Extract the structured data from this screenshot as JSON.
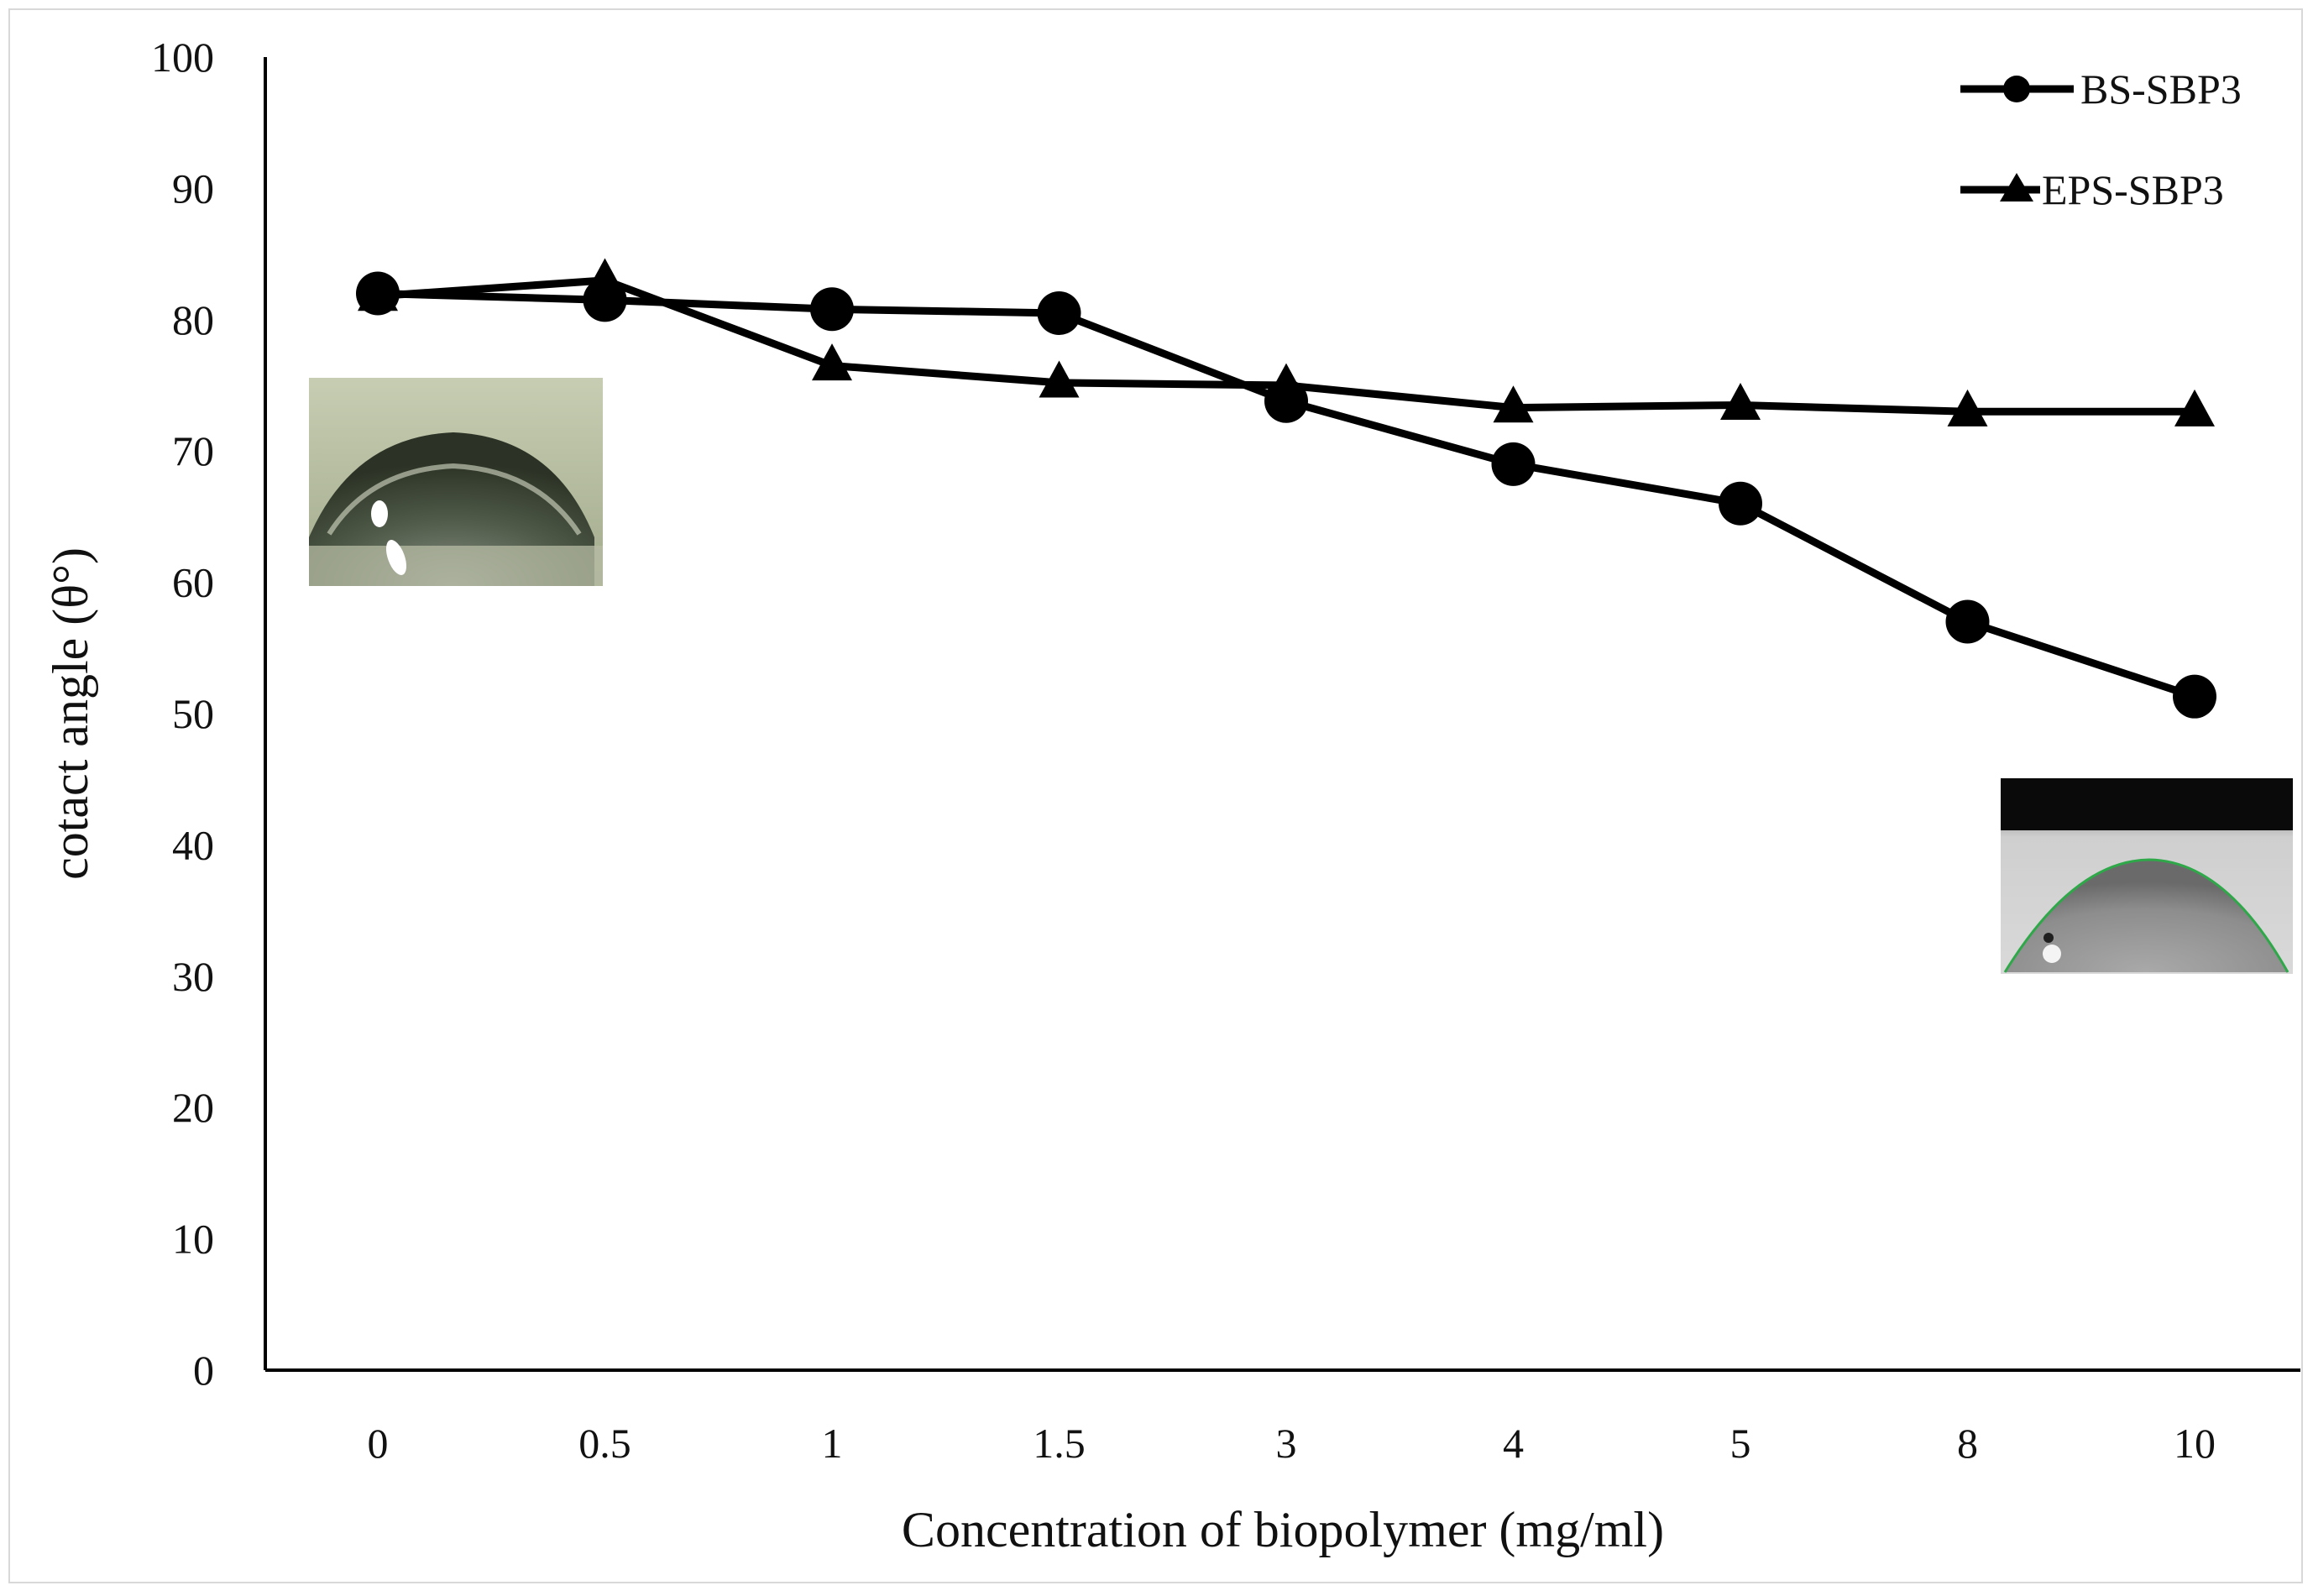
{
  "chart_data": {
    "type": "line",
    "title": "",
    "xlabel": "Concentration of biopolymer (mg/ml)",
    "ylabel": "cotact angle  (θ°)",
    "ylim": [
      0,
      100
    ],
    "y_ticks": [
      0,
      10,
      20,
      30,
      40,
      50,
      60,
      70,
      80,
      90,
      100
    ],
    "categories": [
      "0",
      "0.5",
      "1",
      "1.5",
      "3",
      "4",
      "5",
      "8",
      "10"
    ],
    "grid": false,
    "legend_position": "top-right",
    "series": [
      {
        "name": "BS-SBP3",
        "marker": "circle",
        "color": "#000000",
        "values": [
          82,
          81.5,
          80.8,
          80.5,
          73.8,
          69,
          66,
          57,
          51.3
        ]
      },
      {
        "name": "EPS-SBP3",
        "marker": "triangle",
        "color": "#000000",
        "values": [
          81.8,
          83,
          76.5,
          75.2,
          75,
          73.3,
          73.5,
          73,
          73
        ]
      }
    ],
    "annotations": [
      {
        "kind": "droplet-photo",
        "name": "droplet-image-high-angle",
        "near": "left, around 70° level"
      },
      {
        "kind": "droplet-photo",
        "name": "droplet-image-low-angle",
        "near": "right, around 35° level"
      }
    ]
  }
}
